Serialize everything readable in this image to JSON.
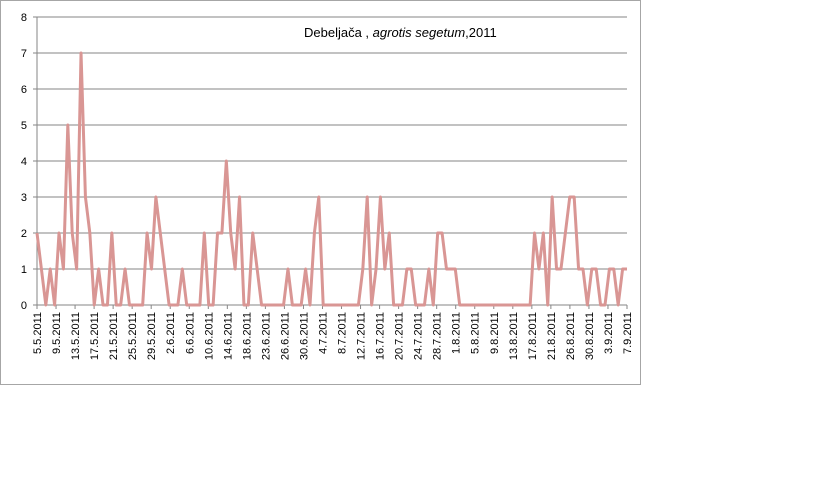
{
  "chart_data": {
    "type": "line",
    "title": "Debeljača , agrotis segetum,2011",
    "title_parts": [
      {
        "text": "Debeljača , ",
        "italic": false
      },
      {
        "text": "agrotis segetum",
        "italic": true
      },
      {
        "text": ",2011",
        "italic": false
      }
    ],
    "xlabel": "",
    "ylabel": "",
    "ylim": [
      0,
      8
    ],
    "y_ticks": [
      "0",
      "1",
      "2",
      "3",
      "4",
      "5",
      "6",
      "7",
      "8"
    ],
    "grid": true,
    "legend": "none",
    "series": [
      {
        "color": "#d99694",
        "values": [
          2,
          1,
          0,
          1,
          0,
          2,
          1,
          5,
          2,
          1,
          7,
          3,
          2,
          0,
          1,
          0,
          0,
          2,
          0,
          0,
          1,
          0,
          0,
          0,
          0,
          2,
          1,
          3,
          2,
          1,
          0,
          0,
          0,
          1,
          0,
          0,
          0,
          0,
          2,
          0,
          0,
          2,
          2,
          4,
          2,
          1,
          3,
          0,
          0,
          2,
          1,
          0,
          0,
          0,
          0,
          0,
          0,
          1,
          0,
          0,
          0,
          1,
          0,
          2,
          3,
          0,
          0,
          0,
          0,
          0,
          0,
          0,
          0,
          0,
          1,
          3,
          0,
          1,
          3,
          1,
          2,
          0,
          0,
          0,
          1,
          1,
          0,
          0,
          0,
          1,
          0,
          2,
          2,
          1,
          1,
          1,
          0,
          0,
          0,
          0,
          0,
          0,
          0,
          0,
          0,
          0,
          0,
          0,
          0,
          0,
          0,
          0,
          0,
          2,
          1,
          2,
          0,
          3,
          1,
          1,
          2,
          3,
          3,
          1,
          1,
          0,
          1,
          1,
          0,
          0,
          1,
          1,
          0,
          1,
          1
        ]
      }
    ],
    "x_tick_labels": [
      "5.5.2011",
      "9.5.2011",
      "13.5.2011",
      "17.5.2011",
      "21.5.2011",
      "25.5.2011",
      "29.5.2011",
      "2.6.2011",
      "6.6.2011",
      "10.6.2011",
      "14.6.2011",
      "18.6.2011",
      "23.6.2011",
      "26.6.2011",
      "30.6.2011",
      "4.7.2011",
      "8.7.2011",
      "12.7.2011",
      "16.7.2011",
      "20.7.2011",
      "24.7.2011",
      "28.7.2011",
      "1.8.2011",
      "5.8.2011",
      "9.8.2011",
      "13.8.2011",
      "17.8.2011",
      "21.8.2011",
      "26.8.2011",
      "30.8.2011",
      "3.9.2011",
      "7.9.2011"
    ],
    "colors": {
      "series": "#d99694",
      "grid": "#868686",
      "axis": "#868686",
      "frame": "#a6a6a6"
    }
  }
}
